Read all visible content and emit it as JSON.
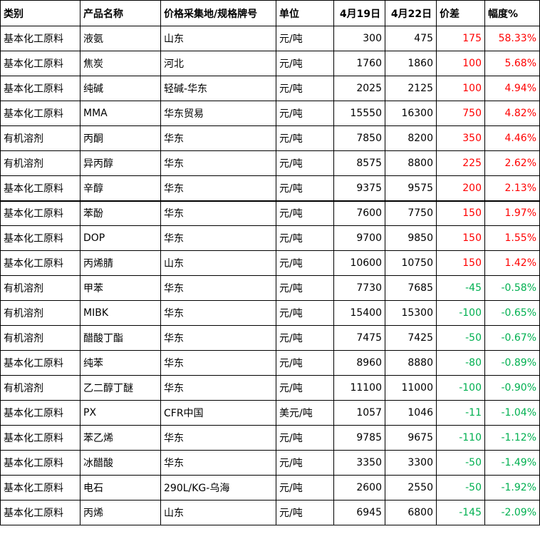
{
  "table": {
    "headers": [
      "类别",
      "产品名称",
      "价格采集地/规格牌号",
      "单位",
      "4月19日",
      "4月22日",
      "价差",
      "幅度%"
    ],
    "rows": [
      [
        "基本化工原料",
        "液氨",
        "山东",
        "元/吨",
        "300",
        "475",
        "175",
        "58.33%"
      ],
      [
        "基本化工原料",
        "焦炭",
        "河北",
        "元/吨",
        "1760",
        "1860",
        "100",
        "5.68%"
      ],
      [
        "基本化工原料",
        "纯碱",
        "轻碱-华东",
        "元/吨",
        "2025",
        "2125",
        "100",
        "4.94%"
      ],
      [
        "基本化工原料",
        "MMA",
        "华东贸易",
        "元/吨",
        "15550",
        "16300",
        "750",
        "4.82%"
      ],
      [
        "有机溶剂",
        "丙酮",
        "华东",
        "元/吨",
        "7850",
        "8200",
        "350",
        "4.46%"
      ],
      [
        "有机溶剂",
        "异丙醇",
        "华东",
        "元/吨",
        "8575",
        "8800",
        "225",
        "2.62%"
      ],
      [
        "基本化工原料",
        "辛醇",
        "华东",
        "元/吨",
        "9375",
        "9575",
        "200",
        "2.13%"
      ],
      [
        "基本化工原料",
        "苯酚",
        "华东",
        "元/吨",
        "7600",
        "7750",
        "150",
        "1.97%"
      ],
      [
        "基本化工原料",
        "DOP",
        "华东",
        "元/吨",
        "9700",
        "9850",
        "150",
        "1.55%"
      ],
      [
        "基本化工原料",
        "丙烯腈",
        "山东",
        "元/吨",
        "10600",
        "10750",
        "150",
        "1.42%"
      ],
      [
        "有机溶剂",
        "甲苯",
        "华东",
        "元/吨",
        "7730",
        "7685",
        "-45",
        "-0.58%"
      ],
      [
        "有机溶剂",
        "MIBK",
        "华东",
        "元/吨",
        "15400",
        "15300",
        "-100",
        "-0.65%"
      ],
      [
        "有机溶剂",
        "醋酸丁酯",
        "华东",
        "元/吨",
        "7475",
        "7425",
        "-50",
        "-0.67%"
      ],
      [
        "基本化工原料",
        "纯苯",
        "华东",
        "元/吨",
        "8960",
        "8880",
        "-80",
        "-0.89%"
      ],
      [
        "有机溶剂",
        "乙二醇丁醚",
        "华东",
        "元/吨",
        "11100",
        "11000",
        "-100",
        "-0.90%"
      ],
      [
        "基本化工原料",
        "PX",
        "CFR中国",
        "美元/吨",
        "1057",
        "1046",
        "-11",
        "-1.04%"
      ],
      [
        "基本化工原料",
        "苯乙烯",
        "华东",
        "元/吨",
        "9785",
        "9675",
        "-110",
        "-1.12%"
      ],
      [
        "基本化工原料",
        "冰醋酸",
        "华东",
        "元/吨",
        "3350",
        "3300",
        "-50",
        "-1.49%"
      ],
      [
        "基本化工原料",
        "电石",
        "290L/KG-乌海",
        "元/吨",
        "2600",
        "2550",
        "-50",
        "-1.92%"
      ],
      [
        "基本化工原料",
        "丙烯",
        "山东",
        "元/吨",
        "6945",
        "6800",
        "-145",
        "-2.09%"
      ]
    ]
  },
  "colors": {
    "up": "#ff0000",
    "down": "#00b050",
    "border": "#000000"
  }
}
